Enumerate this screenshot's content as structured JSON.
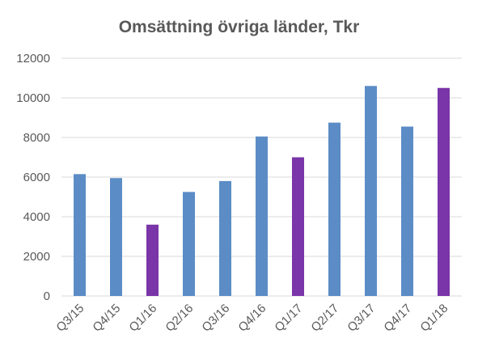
{
  "chart_data": {
    "type": "bar",
    "title": "Omsättning övriga länder, Tkr",
    "xlabel": "",
    "ylabel": "",
    "categories": [
      "Q3/15",
      "Q4/15",
      "Q1/16",
      "Q2/16",
      "Q3/16",
      "Q4/16",
      "Q1/17",
      "Q2/17",
      "Q3/17",
      "Q4/17",
      "Q1/18"
    ],
    "values": [
      6150,
      5950,
      3600,
      5250,
      5800,
      8050,
      7000,
      8750,
      10600,
      8550,
      10500
    ],
    "ylim": [
      0,
      12000
    ],
    "yticks": [
      0,
      2000,
      4000,
      6000,
      8000,
      10000,
      12000
    ],
    "grid": true,
    "legend": "none",
    "colors": {
      "default_bar": "#5b8cc6",
      "highlight_bar": "#7a35a8",
      "grid": "#d9d9d9",
      "text": "#595959"
    },
    "bar_colors": [
      "#5b8cc6",
      "#5b8cc6",
      "#7a35a8",
      "#5b8cc6",
      "#5b8cc6",
      "#5b8cc6",
      "#7a35a8",
      "#5b8cc6",
      "#5b8cc6",
      "#5b8cc6",
      "#7a35a8"
    ]
  }
}
